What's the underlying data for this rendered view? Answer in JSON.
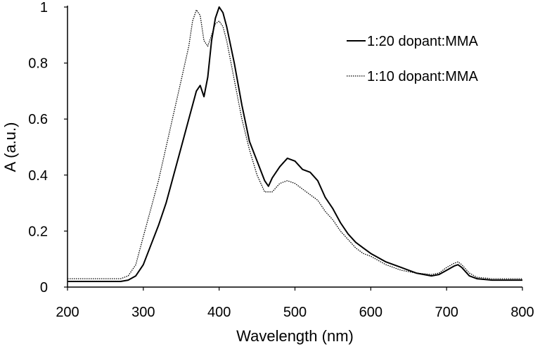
{
  "chart_data": {
    "type": "line",
    "title": "",
    "xlabel": "Wavelength (nm)",
    "ylabel": "A (a.u.)",
    "xlim": [
      200,
      800
    ],
    "ylim": [
      0,
      1
    ],
    "x_ticks": [
      "200",
      "300",
      "400",
      "500",
      "600",
      "700",
      "800"
    ],
    "y_ticks": [
      "0",
      "0.2",
      "0.4",
      "0.6",
      "0.8",
      "1"
    ],
    "grid": false,
    "legend_position": "top-right",
    "series": [
      {
        "name": "1:20 dopant:MMA",
        "style": "solid",
        "color": "#000000",
        "points": [
          [
            200,
            0.02
          ],
          [
            220,
            0.02
          ],
          [
            240,
            0.02
          ],
          [
            260,
            0.02
          ],
          [
            270,
            0.02
          ],
          [
            280,
            0.025
          ],
          [
            290,
            0.04
          ],
          [
            300,
            0.08
          ],
          [
            310,
            0.15
          ],
          [
            320,
            0.22
          ],
          [
            330,
            0.3
          ],
          [
            340,
            0.4
          ],
          [
            350,
            0.5
          ],
          [
            360,
            0.6
          ],
          [
            370,
            0.7
          ],
          [
            375,
            0.72
          ],
          [
            380,
            0.68
          ],
          [
            385,
            0.75
          ],
          [
            390,
            0.88
          ],
          [
            395,
            0.96
          ],
          [
            400,
            1.0
          ],
          [
            405,
            0.98
          ],
          [
            410,
            0.93
          ],
          [
            420,
            0.8
          ],
          [
            430,
            0.65
          ],
          [
            440,
            0.52
          ],
          [
            450,
            0.45
          ],
          [
            460,
            0.38
          ],
          [
            465,
            0.36
          ],
          [
            470,
            0.39
          ],
          [
            480,
            0.43
          ],
          [
            490,
            0.46
          ],
          [
            500,
            0.45
          ],
          [
            510,
            0.42
          ],
          [
            520,
            0.41
          ],
          [
            530,
            0.38
          ],
          [
            540,
            0.32
          ],
          [
            550,
            0.28
          ],
          [
            560,
            0.23
          ],
          [
            570,
            0.19
          ],
          [
            580,
            0.16
          ],
          [
            590,
            0.14
          ],
          [
            600,
            0.12
          ],
          [
            620,
            0.09
          ],
          [
            640,
            0.07
          ],
          [
            660,
            0.05
          ],
          [
            680,
            0.04
          ],
          [
            690,
            0.045
          ],
          [
            700,
            0.06
          ],
          [
            710,
            0.075
          ],
          [
            715,
            0.08
          ],
          [
            720,
            0.07
          ],
          [
            730,
            0.04
          ],
          [
            740,
            0.03
          ],
          [
            760,
            0.025
          ],
          [
            780,
            0.025
          ],
          [
            800,
            0.025
          ]
        ]
      },
      {
        "name": "1:10 dopant:MMA",
        "style": "dotted",
        "color": "#000000",
        "points": [
          [
            200,
            0.03
          ],
          [
            220,
            0.03
          ],
          [
            240,
            0.03
          ],
          [
            260,
            0.03
          ],
          [
            270,
            0.03
          ],
          [
            280,
            0.04
          ],
          [
            290,
            0.08
          ],
          [
            300,
            0.18
          ],
          [
            310,
            0.28
          ],
          [
            320,
            0.38
          ],
          [
            330,
            0.5
          ],
          [
            340,
            0.62
          ],
          [
            350,
            0.74
          ],
          [
            360,
            0.86
          ],
          [
            365,
            0.95
          ],
          [
            370,
            0.99
          ],
          [
            375,
            0.97
          ],
          [
            380,
            0.88
          ],
          [
            385,
            0.86
          ],
          [
            390,
            0.9
          ],
          [
            395,
            0.94
          ],
          [
            400,
            0.95
          ],
          [
            405,
            0.93
          ],
          [
            410,
            0.88
          ],
          [
            420,
            0.74
          ],
          [
            430,
            0.6
          ],
          [
            440,
            0.49
          ],
          [
            450,
            0.4
          ],
          [
            460,
            0.34
          ],
          [
            470,
            0.34
          ],
          [
            480,
            0.37
          ],
          [
            490,
            0.38
          ],
          [
            500,
            0.37
          ],
          [
            510,
            0.35
          ],
          [
            520,
            0.33
          ],
          [
            530,
            0.31
          ],
          [
            540,
            0.27
          ],
          [
            550,
            0.24
          ],
          [
            560,
            0.2
          ],
          [
            570,
            0.17
          ],
          [
            580,
            0.14
          ],
          [
            590,
            0.12
          ],
          [
            600,
            0.11
          ],
          [
            620,
            0.08
          ],
          [
            640,
            0.06
          ],
          [
            660,
            0.05
          ],
          [
            680,
            0.045
          ],
          [
            690,
            0.05
          ],
          [
            700,
            0.07
          ],
          [
            710,
            0.085
          ],
          [
            715,
            0.09
          ],
          [
            720,
            0.08
          ],
          [
            730,
            0.05
          ],
          [
            740,
            0.035
          ],
          [
            760,
            0.03
          ],
          [
            780,
            0.03
          ],
          [
            800,
            0.03
          ]
        ]
      }
    ]
  }
}
